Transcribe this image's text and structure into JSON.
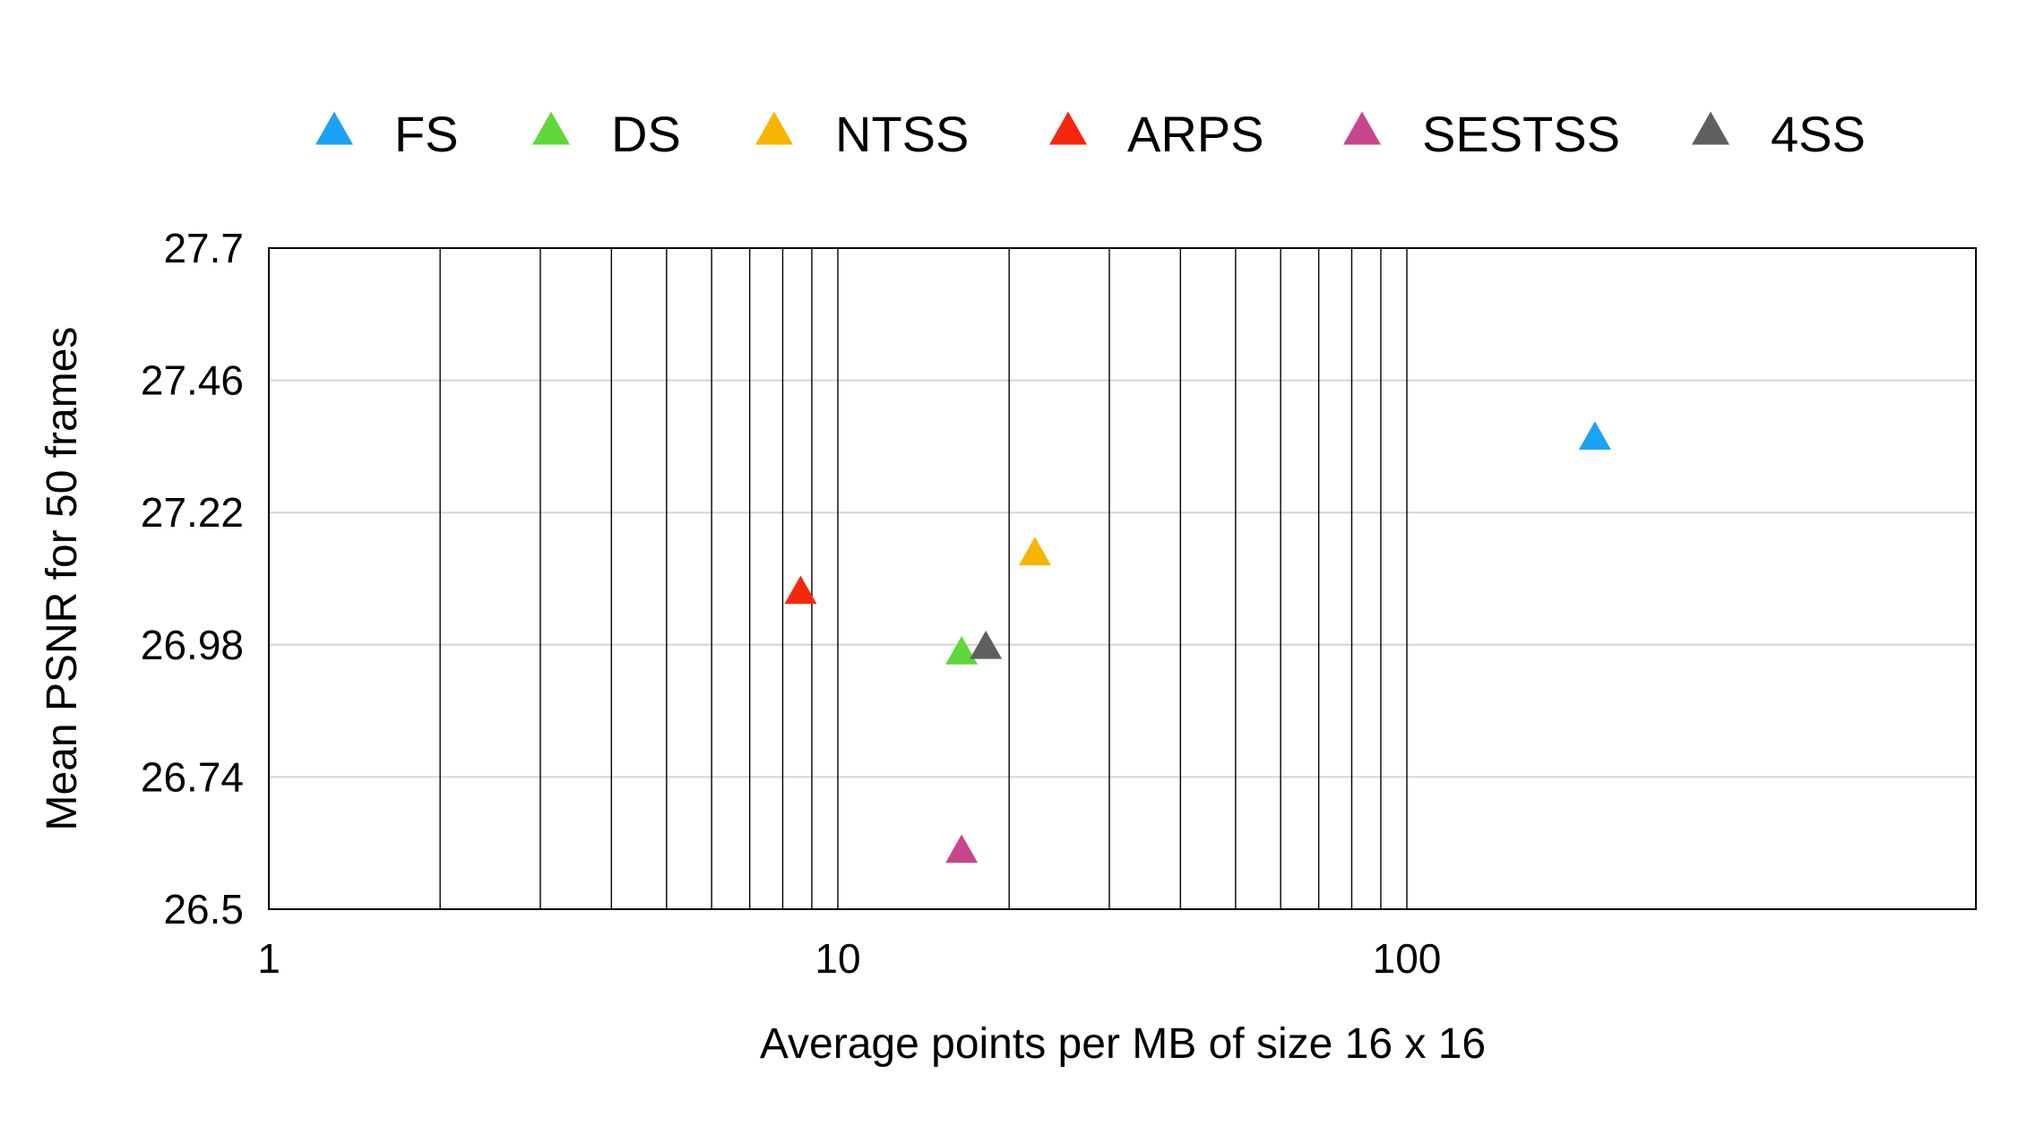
{
  "chart_data": {
    "type": "scatter",
    "title": "",
    "xlabel": "Average points per MB of size 16 x 16",
    "ylabel": "Mean PSNR for 50 frames",
    "x_scale": "log",
    "xlim": [
      1,
      1000
    ],
    "ylim": [
      26.5,
      27.7
    ],
    "x_ticks": [
      {
        "value": 1,
        "label": "1"
      },
      {
        "value": 10,
        "label": "10"
      },
      {
        "value": 100,
        "label": "100"
      }
    ],
    "y_ticks": [
      {
        "value": 26.5,
        "label": "26.5"
      },
      {
        "value": 26.74,
        "label": "26.74"
      },
      {
        "value": 26.98,
        "label": "26.98"
      },
      {
        "value": 27.22,
        "label": "27.22"
      },
      {
        "value": 27.46,
        "label": "27.46"
      },
      {
        "value": 27.7,
        "label": "27.7"
      }
    ],
    "grid": {
      "x_major_minor": true,
      "y_major": true,
      "x_grid_extent": [
        1,
        100
      ]
    },
    "legend_position": "top",
    "marker": "triangle",
    "series": [
      {
        "name": "FS",
        "color": "#1aa3f5",
        "x": [
          214
        ],
        "y": [
          27.36
        ]
      },
      {
        "name": "DS",
        "color": "#5ed83a",
        "x": [
          16.5
        ],
        "y": [
          26.97
        ]
      },
      {
        "name": "NTSS",
        "color": "#f7b500",
        "x": [
          22.2
        ],
        "y": [
          27.15
        ]
      },
      {
        "name": "ARPS",
        "color": "#f5280e",
        "x": [
          8.6
        ],
        "y": [
          27.08
        ]
      },
      {
        "name": "SESTSS",
        "color": "#c8468b",
        "x": [
          16.5
        ],
        "y": [
          26.61
        ]
      },
      {
        "name": "4SS",
        "color": "#5f5f5f",
        "x": [
          18.2
        ],
        "y": [
          26.98
        ]
      }
    ]
  }
}
